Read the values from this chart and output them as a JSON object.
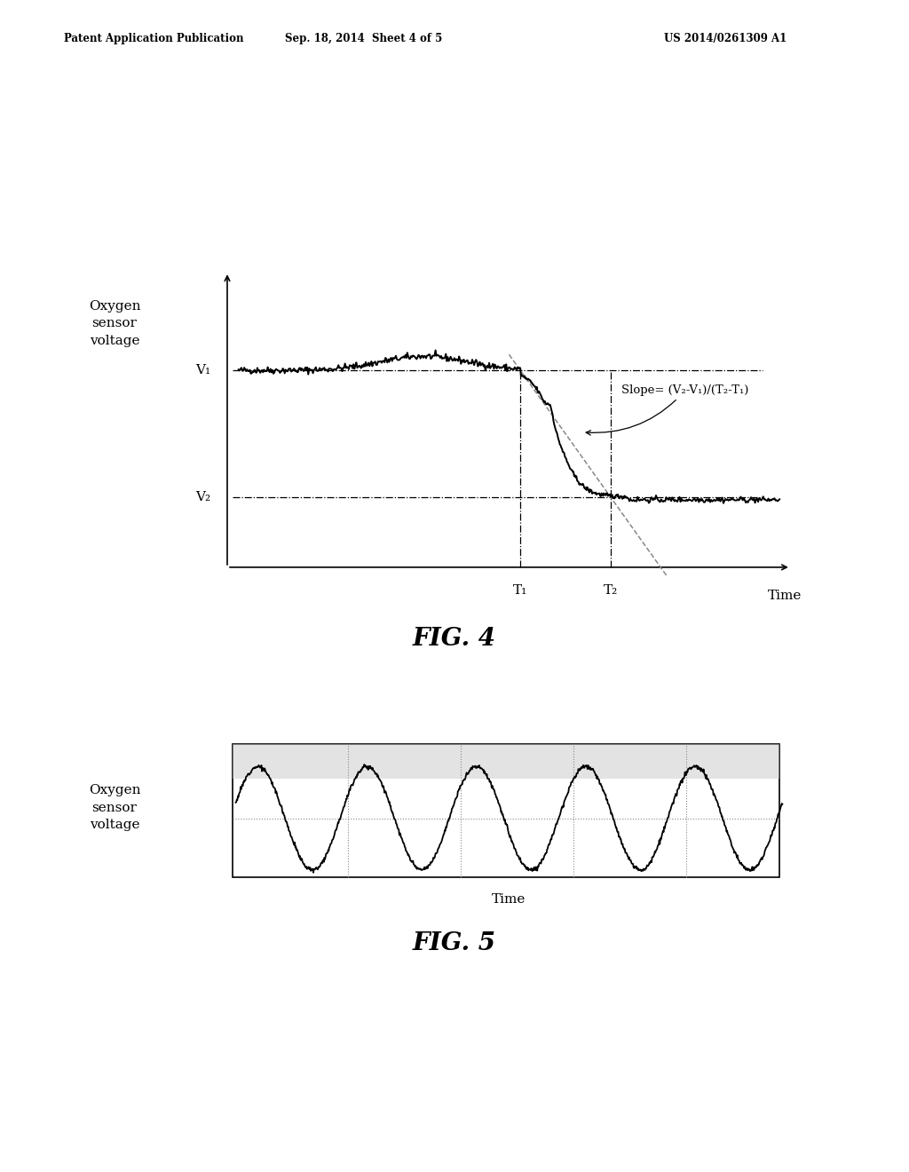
{
  "header_left": "Patent Application Publication",
  "header_mid": "Sep. 18, 2014  Sheet 4 of 5",
  "header_right": "US 2014/0261309 A1",
  "fig4_title": "FIG. 4",
  "fig5_title": "FIG. 5",
  "fig4_ylabel": "Oxygen\nsensor\nvoltage",
  "fig4_xlabel": "Time",
  "fig5_ylabel": "Oxygen\nsensor\nvoltage",
  "fig5_xlabel": "Time",
  "v1_label": "V₁",
  "v2_label": "V₂",
  "t1_label": "T₁",
  "t2_label": "T₂",
  "slope_label": "Slope= (V₂-V₁)/(T₂-T₁)",
  "bg_color": "#ffffff",
  "line_color": "#000000"
}
